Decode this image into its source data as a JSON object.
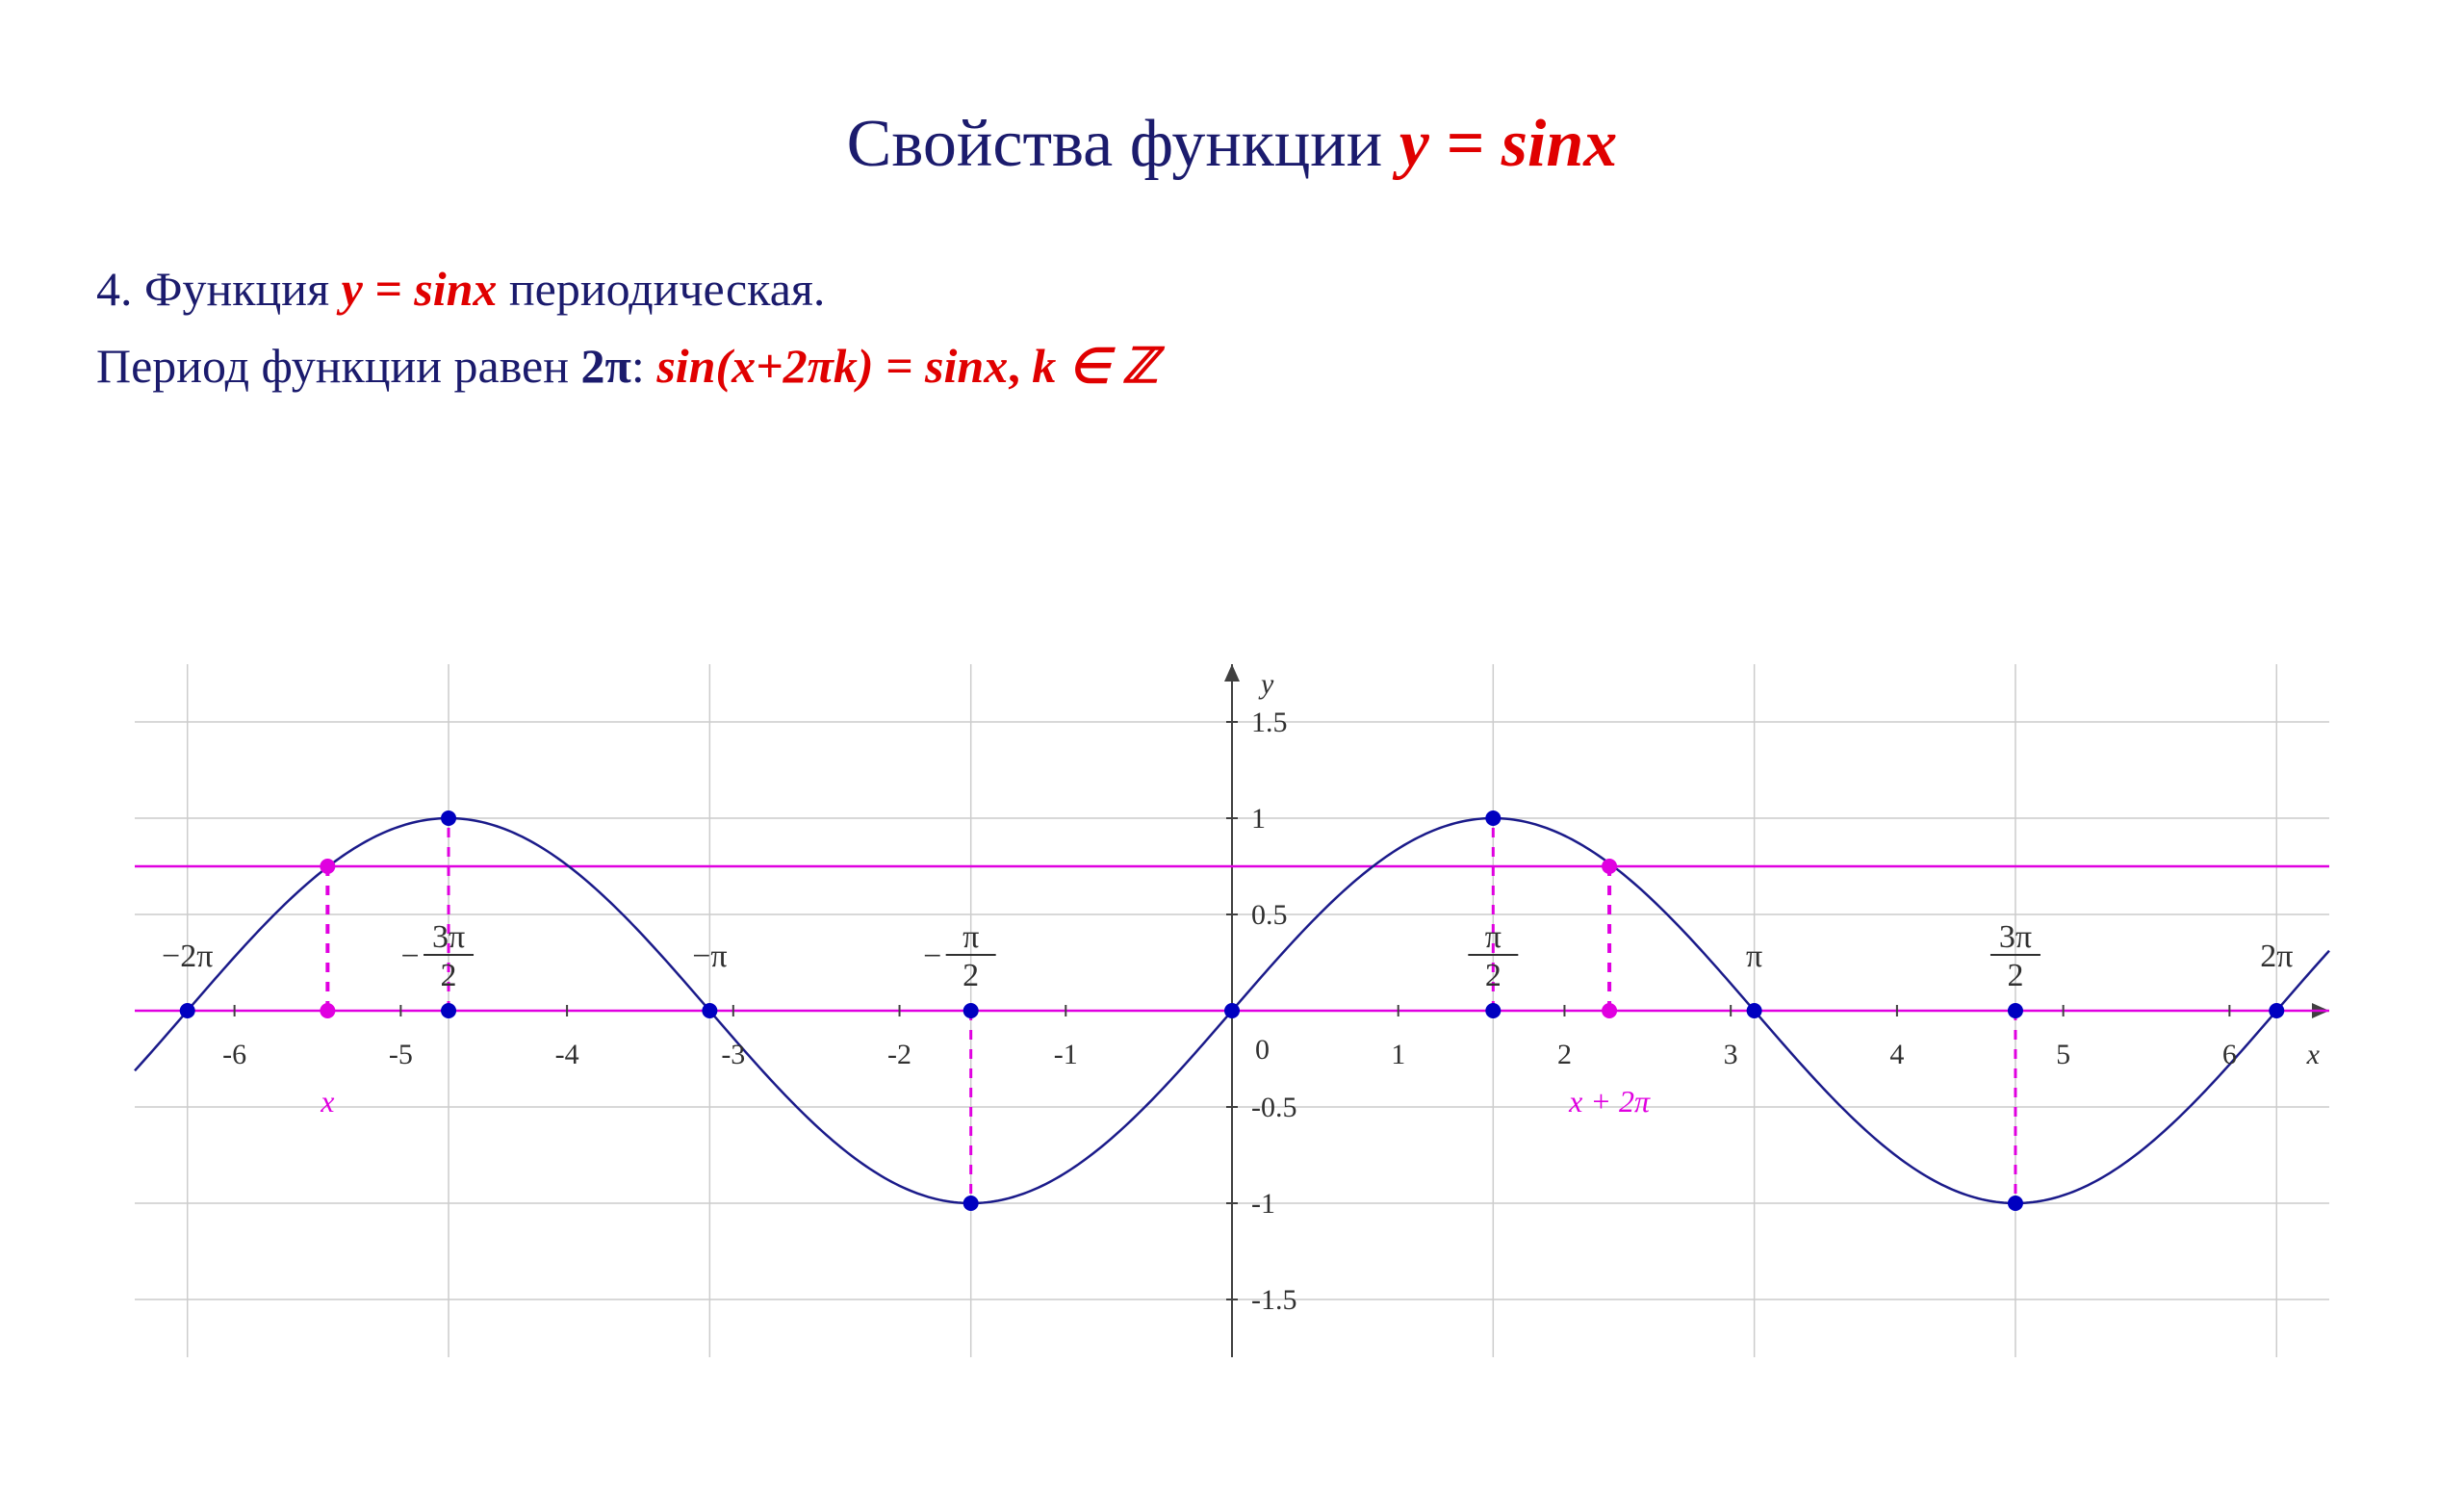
{
  "title": {
    "a": "Свойства функции ",
    "b": "y = sinx"
  },
  "line1": {
    "prefix": "4. Функция ",
    "formula": "y = sinx",
    "suffix": " периодическая."
  },
  "line2": {
    "prefix": "Период функции равен ",
    "period": "2π",
    "colon": ": ",
    "eq": "sin(x+2πk) = sinx",
    "comma": ", ",
    "kin": " k ∈ ℤ"
  },
  "chart": {
    "type": "line",
    "background_color": "#ffffff",
    "grid_color": "#cccccc",
    "axis_color": "#404040",
    "curve_color": "#1b1b8a",
    "curve_width": 2.5,
    "magenta_color": "#e000e0",
    "dashed_color": "#e000e0",
    "blue_dot_color": "#0000c0",
    "magenta_dot_color": "#e000e0",
    "dot_radius": 8,
    "xlim": [
      -6.6,
      6.6
    ],
    "ylim": [
      -1.8,
      1.8
    ],
    "x_ticks_int": [
      -6,
      -5,
      -4,
      -3,
      -2,
      -1,
      1,
      2,
      3,
      4,
      5,
      6
    ],
    "y_ticks": [
      -1.5,
      -1,
      -0.5,
      0.5,
      1,
      1.5
    ],
    "y_tick_labels": [
      "-1.5",
      "-1",
      "-0.5",
      "0.5",
      "1",
      "1.5"
    ],
    "origin_label": "0",
    "xaxis_label": "x",
    "yaxis_label": "y",
    "x_grid_pi": [
      -6.2832,
      -4.7124,
      -3.1416,
      -1.5708,
      1.5708,
      3.1416,
      4.7124,
      6.2832
    ],
    "pi_labels": [
      {
        "x": -6.2832,
        "txt": "-2π"
      },
      {
        "x": -4.7124,
        "txt": "-3π/2",
        "frac": true,
        "neg": true,
        "num": "3π",
        "den": "2"
      },
      {
        "x": -3.1416,
        "txt": "-π"
      },
      {
        "x": -1.5708,
        "txt": "-π/2",
        "frac": true,
        "neg": true,
        "num": "π",
        "den": "2"
      },
      {
        "x": 1.5708,
        "txt": "π/2",
        "frac": true,
        "num": "π",
        "den": "2"
      },
      {
        "x": 3.1416,
        "txt": "π"
      },
      {
        "x": 4.7124,
        "txt": "3π/2",
        "frac": true,
        "num": "3π",
        "den": "2"
      },
      {
        "x": 6.2832,
        "txt": "2π"
      }
    ],
    "horizontal_line_y": 0.75,
    "special_x": -5.44,
    "special_x_plus_2pi": 0.8432,
    "vertical_dashed_blue": [
      -4.7124,
      -1.5708,
      1.5708,
      4.7124
    ],
    "vertical_dashed_magenta_x": [
      -5.44,
      2.27
    ],
    "blue_dots_on_curve": [
      [
        -6.2832,
        0
      ],
      [
        -4.7124,
        1
      ],
      [
        -3.1416,
        0
      ],
      [
        -1.5708,
        -1
      ],
      [
        0,
        0
      ],
      [
        1.5708,
        1
      ],
      [
        3.1416,
        0
      ],
      [
        4.7124,
        -1
      ],
      [
        6.2832,
        0
      ]
    ],
    "blue_dots_on_axis": [
      -4.7124,
      -1.5708,
      1.5708,
      4.7124
    ],
    "magenta_dots": [
      [
        -5.44,
        0.75
      ],
      [
        -5.44,
        0
      ],
      [
        2.27,
        0.75
      ],
      [
        2.27,
        0
      ]
    ],
    "bottom_labels": {
      "x_label": "x",
      "xplus_label": "x + 2π"
    },
    "tick_fontsize": 30,
    "pi_label_fontsize": 34,
    "pi_label_color": "#303030",
    "tick_label_color": "#303030",
    "magenta_label_fontsize": 32
  }
}
